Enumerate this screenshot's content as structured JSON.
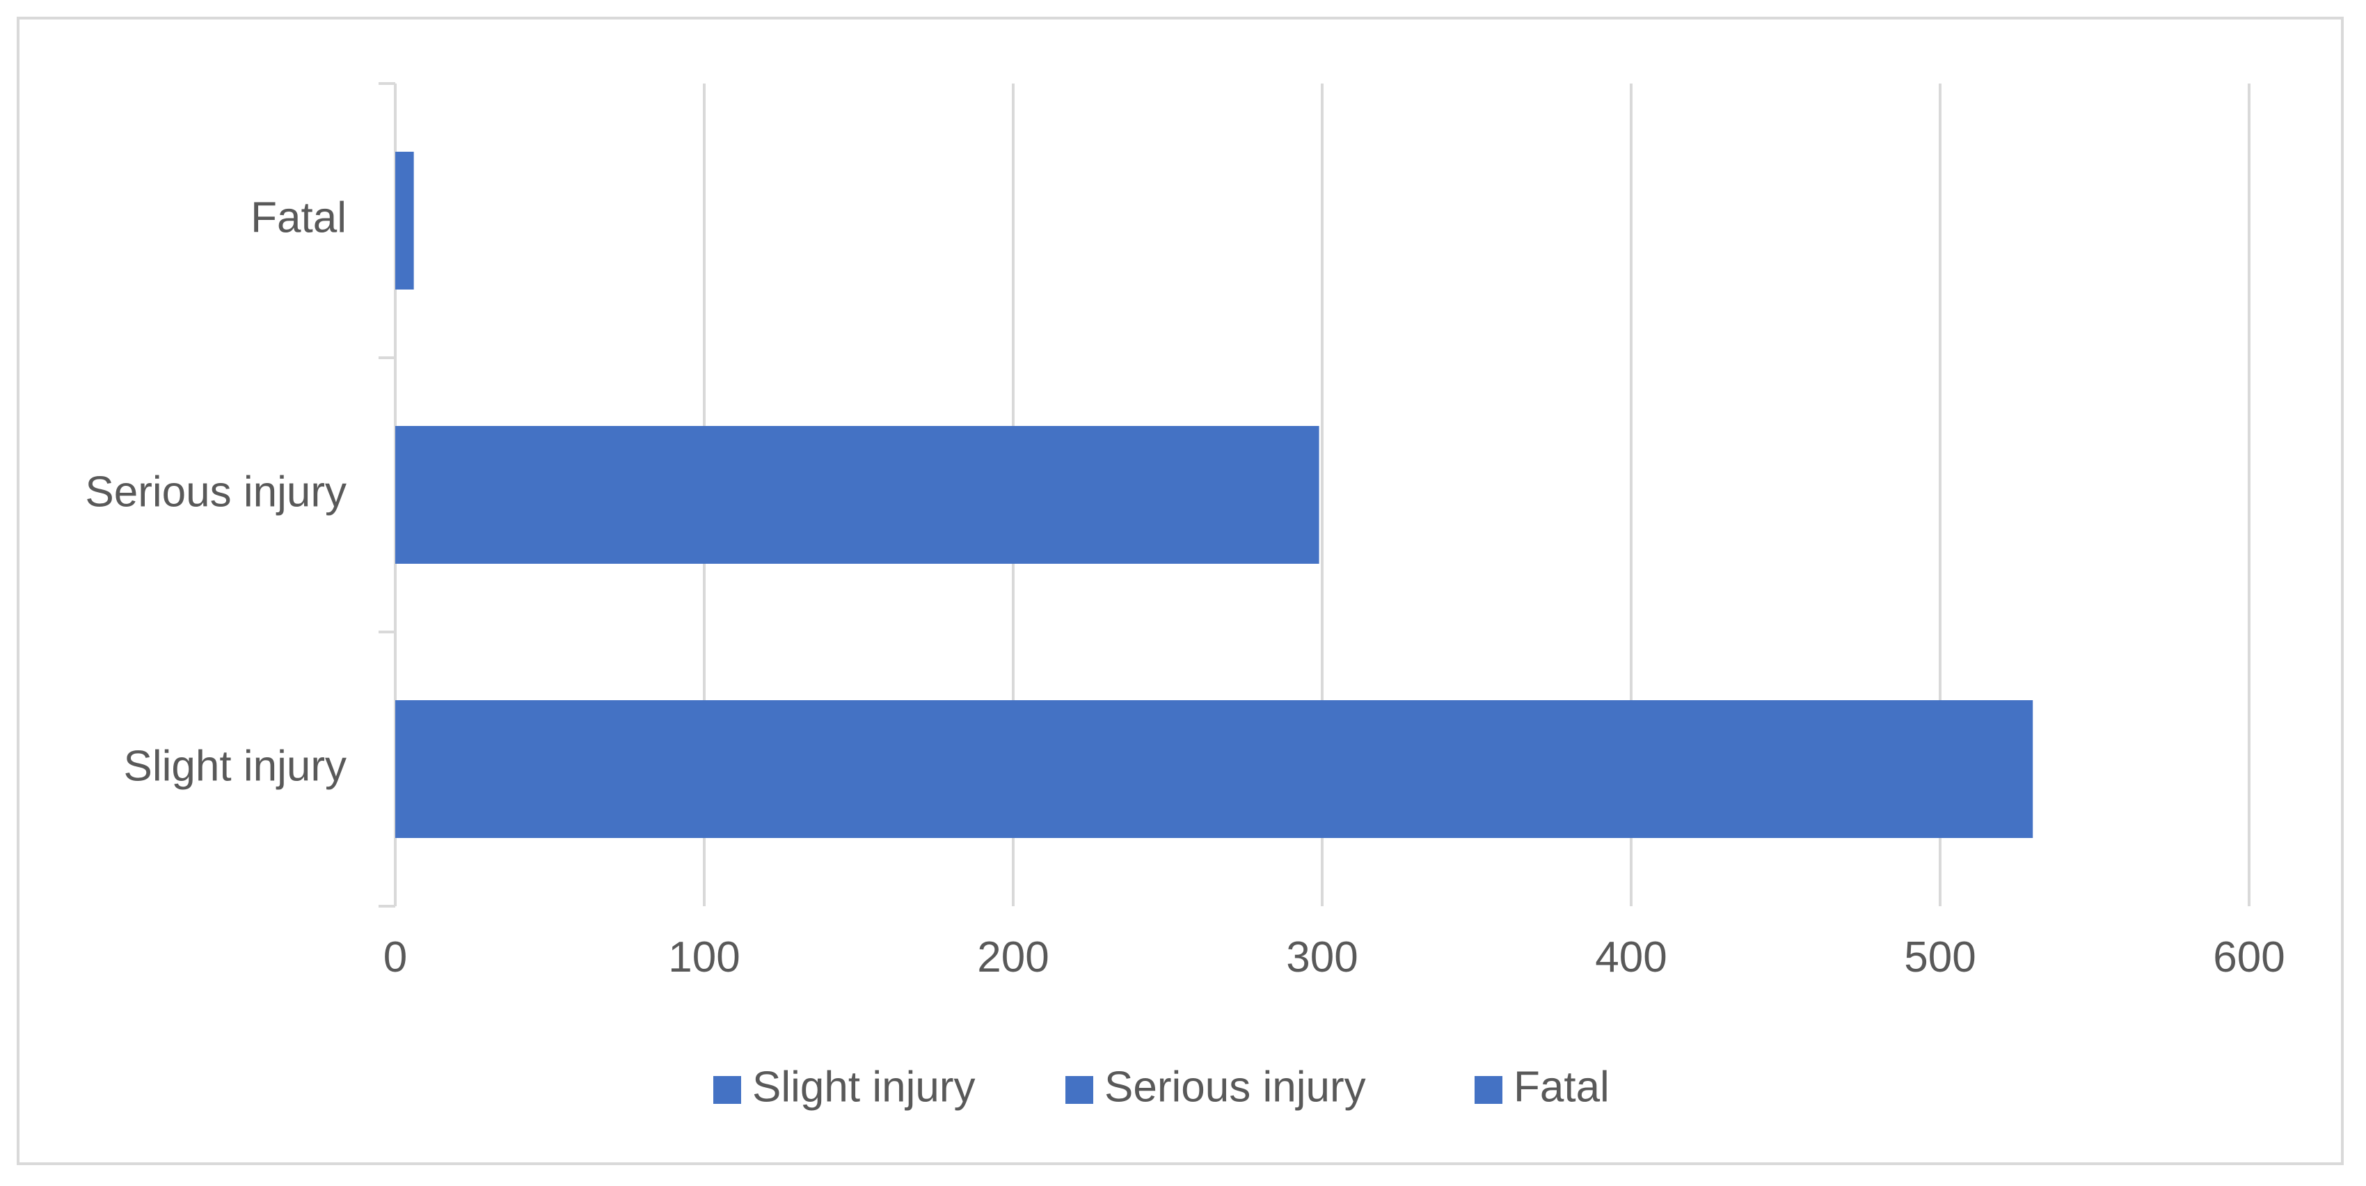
{
  "chart_data": {
    "type": "bar",
    "orientation": "horizontal",
    "categories": [
      "Slight injury",
      "Serious injury",
      "Fatal"
    ],
    "values": [
      530,
      299,
      6
    ],
    "xlim": [
      0,
      600
    ],
    "xticks": [
      0,
      100,
      200,
      300,
      400,
      500,
      600
    ],
    "grid": "vertical",
    "legend": {
      "placement": "bottom",
      "entries": [
        "Slight injury",
        "Serious injury",
        "Fatal"
      ]
    },
    "colors": {
      "bar": "#4472C4",
      "grid": "#d9d9d9",
      "text": "#595959"
    }
  }
}
